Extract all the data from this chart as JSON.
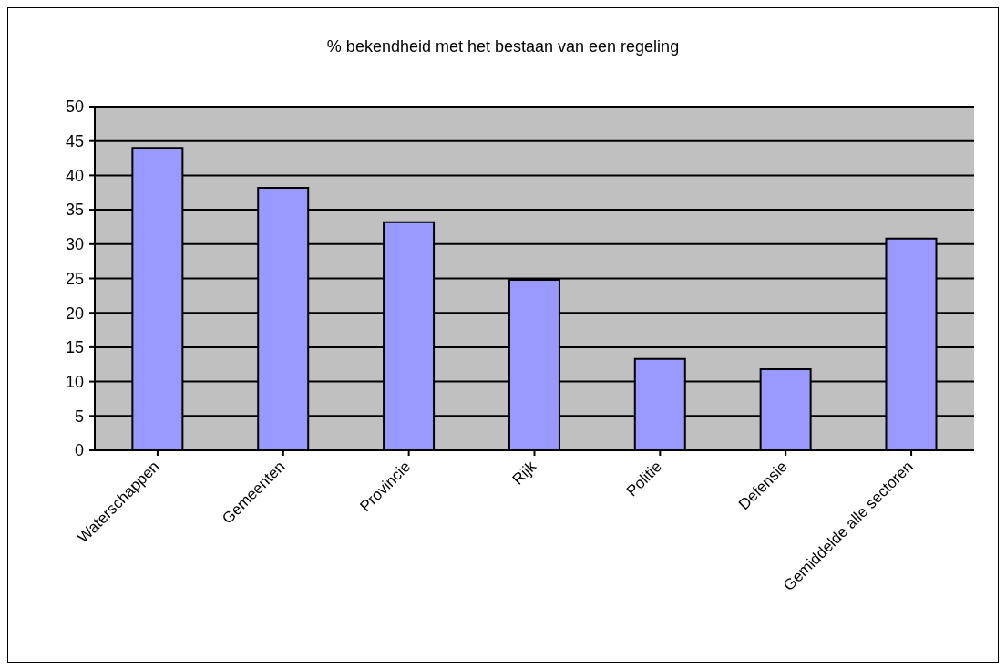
{
  "chart_data": {
    "type": "bar",
    "title": "% bekendheid met het bestaan van een regeling",
    "categories": [
      "Waterschappen",
      "Gemeenten",
      "Provincie",
      "Rijk",
      "Politie",
      "Defensie",
      "Gemiddelde alle sectoren"
    ],
    "values": [
      44,
      38.2,
      33.2,
      24.8,
      13.3,
      11.8,
      30.8
    ],
    "color": "#9999ff",
    "ylim": [
      0,
      50
    ],
    "yticks": [
      0,
      5,
      10,
      15,
      20,
      25,
      30,
      35,
      40,
      45,
      50
    ],
    "grid": "y"
  }
}
